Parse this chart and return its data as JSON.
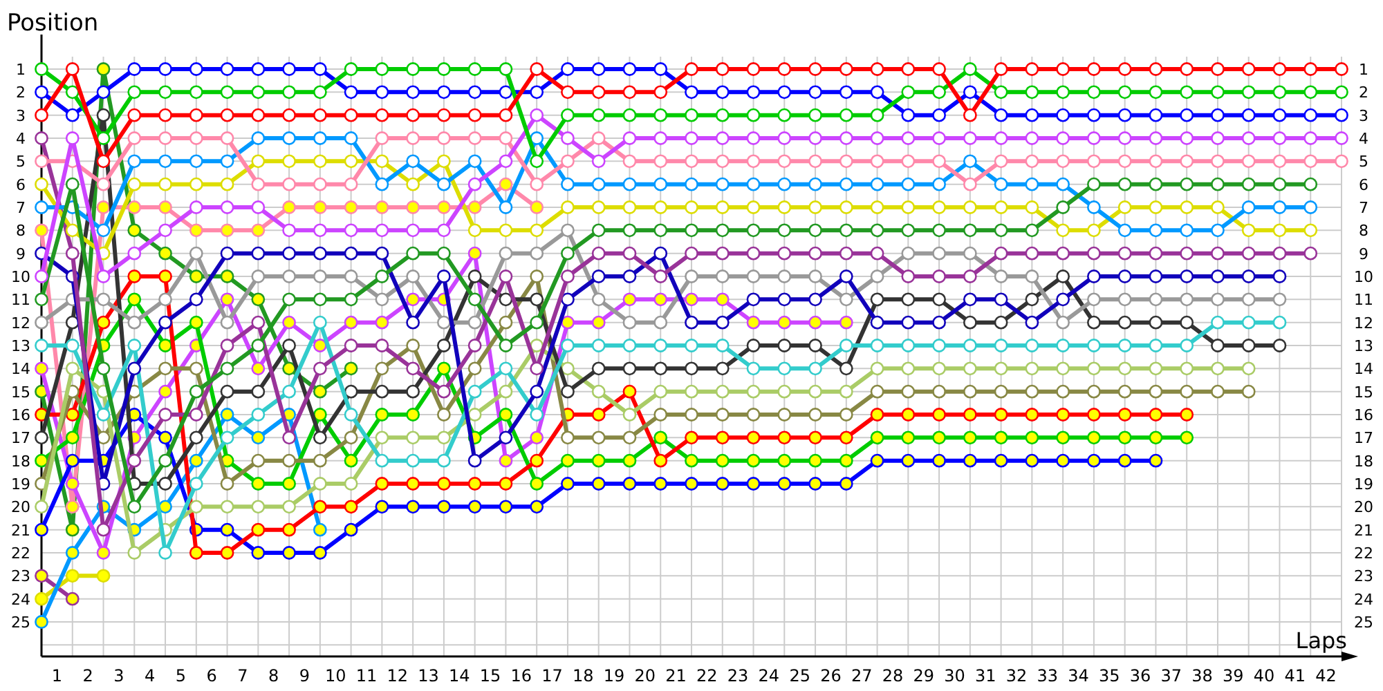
{
  "chart_data": {
    "type": "line",
    "xlabel": "Laps",
    "ylabel": "Position",
    "grid": true,
    "marker": "circle",
    "line_style": "solid",
    "x": [
      0,
      1,
      2,
      3,
      4,
      5,
      6,
      7,
      8,
      9,
      10,
      11,
      12,
      13,
      14,
      15,
      16,
      17,
      18,
      19,
      20,
      21,
      22,
      23,
      24,
      25,
      26,
      27,
      28,
      29,
      30,
      31,
      32,
      33,
      34,
      35,
      36,
      37,
      38,
      39,
      40,
      41,
      42
    ],
    "xlim": [
      0,
      42
    ],
    "xticks": [
      {
        "value": 0,
        "label": null
      },
      {
        "value": 0.5,
        "label": "1"
      },
      {
        "value": 1,
        "label": null
      },
      {
        "value": 1.5,
        "label": "2"
      },
      {
        "value": 2,
        "label": null
      },
      {
        "value": 2.5,
        "label": "3"
      },
      {
        "value": 3,
        "label": null
      },
      {
        "value": 3.5,
        "label": "4"
      },
      {
        "value": 4,
        "label": null
      },
      {
        "value": 4.5,
        "label": "5"
      },
      {
        "value": 5,
        "label": null
      },
      {
        "value": 5.5,
        "label": "6"
      },
      {
        "value": 6,
        "label": null
      },
      {
        "value": 6.5,
        "label": "7"
      },
      {
        "value": 7,
        "label": null
      },
      {
        "value": 7.5,
        "label": "8"
      },
      {
        "value": 8,
        "label": null
      },
      {
        "value": 8.5,
        "label": "9"
      },
      {
        "value": 9,
        "label": null
      },
      {
        "value": 9.5,
        "label": "10"
      },
      {
        "value": 10,
        "label": null
      },
      {
        "value": 10.5,
        "label": "11"
      },
      {
        "value": 11,
        "label": null
      },
      {
        "value": 11.5,
        "label": "12"
      },
      {
        "value": 12,
        "label": null
      },
      {
        "value": 12.5,
        "label": "13"
      },
      {
        "value": 13,
        "label": null
      },
      {
        "value": 13.5,
        "label": "14"
      },
      {
        "value": 14,
        "label": null
      },
      {
        "value": 14.5,
        "label": "15"
      },
      {
        "value": 15,
        "label": null
      },
      {
        "value": 15.5,
        "label": "16"
      },
      {
        "value": 16,
        "label": null
      },
      {
        "value": 16.5,
        "label": "17"
      },
      {
        "value": 17,
        "label": null
      },
      {
        "value": 17.5,
        "label": "18"
      },
      {
        "value": 18,
        "label": null
      },
      {
        "value": 18.5,
        "label": "19"
      },
      {
        "value": 19,
        "label": null
      },
      {
        "value": 19.5,
        "label": "20"
      },
      {
        "value": 20,
        "label": null
      },
      {
        "value": 20.5,
        "label": "21"
      },
      {
        "value": 21,
        "label": null
      },
      {
        "value": 21.5,
        "label": "22"
      },
      {
        "value": 22,
        "label": null
      },
      {
        "value": 22.5,
        "label": "23"
      },
      {
        "value": 23,
        "label": null
      },
      {
        "value": 23.5,
        "label": "24"
      },
      {
        "value": 24,
        "label": null
      },
      {
        "value": 24.5,
        "label": "25"
      },
      {
        "value": 25,
        "label": null
      },
      {
        "value": 25.5,
        "label": "26"
      },
      {
        "value": 26,
        "label": null
      },
      {
        "value": 26.5,
        "label": "27"
      },
      {
        "value": 27,
        "label": null
      },
      {
        "value": 27.5,
        "label": "28"
      },
      {
        "value": 28,
        "label": null
      },
      {
        "value": 28.5,
        "label": "29"
      },
      {
        "value": 29,
        "label": null
      },
      {
        "value": 29.5,
        "label": "30"
      },
      {
        "value": 30,
        "label": null
      },
      {
        "value": 30.5,
        "label": "31"
      },
      {
        "value": 31,
        "label": null
      },
      {
        "value": 31.5,
        "label": "32"
      },
      {
        "value": 32,
        "label": null
      },
      {
        "value": 32.5,
        "label": "33"
      },
      {
        "value": 33,
        "label": null
      },
      {
        "value": 33.5,
        "label": "34"
      },
      {
        "value": 34,
        "label": null
      },
      {
        "value": 34.5,
        "label": "35"
      },
      {
        "value": 35,
        "label": null
      },
      {
        "value": 35.5,
        "label": "36"
      },
      {
        "value": 36,
        "label": null
      },
      {
        "value": 36.5,
        "label": "37"
      },
      {
        "value": 37,
        "label": null
      },
      {
        "value": 37.5,
        "label": "38"
      },
      {
        "value": 38,
        "label": null
      },
      {
        "value": 38.5,
        "label": "39"
      },
      {
        "value": 39,
        "label": null
      },
      {
        "value": 39.5,
        "label": "40"
      },
      {
        "value": 40,
        "label": null
      },
      {
        "value": 40.5,
        "label": "41"
      },
      {
        "value": 41,
        "label": null
      },
      {
        "value": 41.5,
        "label": "42"
      },
      {
        "value": 42,
        "label": null
      }
    ],
    "ylim": [
      26.5,
      -0.5
    ],
    "yticks": [
      1,
      2,
      3,
      4,
      5,
      6,
      7,
      8,
      9,
      10,
      11,
      12,
      13,
      14,
      15,
      16,
      17,
      18,
      19,
      20,
      21,
      22,
      23,
      24,
      25,
      {
        "value": 26,
        "label": null
      }
    ],
    "y2lim": [
      26.5,
      -0.5
    ],
    "y2ticks": [
      1,
      2,
      3,
      4,
      5,
      6,
      7,
      8,
      9,
      10,
      11,
      12,
      13,
      14,
      15,
      16,
      17,
      18,
      19,
      20,
      21,
      22,
      23,
      24,
      25
    ],
    "series": [
      {
        "color": "#ff0000",
        "values": [
          3,
          1,
          5,
          3,
          3,
          3,
          3,
          3,
          3,
          3,
          3,
          3,
          3,
          3,
          3,
          3,
          1,
          2,
          2,
          2,
          2,
          1,
          1,
          1,
          1,
          1,
          1,
          1,
          1,
          1,
          3,
          1,
          1,
          1,
          1,
          1,
          1,
          1,
          1,
          1,
          1,
          1,
          1
        ]
      },
      {
        "color": "#00cc00",
        "values": [
          1,
          2,
          4,
          2,
          2,
          2,
          2,
          2,
          2,
          2,
          1,
          1,
          1,
          1,
          1,
          1,
          5,
          3,
          3,
          3,
          3,
          3,
          3,
          3,
          3,
          3,
          3,
          3,
          2,
          2,
          1,
          2,
          2,
          2,
          2,
          2,
          2,
          2,
          2,
          2,
          2,
          2,
          2
        ]
      },
      {
        "color": "#0000ff",
        "values": [
          2,
          3,
          2,
          1,
          1,
          1,
          1,
          1,
          1,
          1,
          2,
          2,
          2,
          2,
          2,
          2,
          2,
          1,
          1,
          1,
          1,
          2,
          2,
          2,
          2,
          2,
          2,
          2,
          3,
          3,
          2,
          3,
          3,
          3,
          3,
          3,
          3,
          3,
          3,
          3,
          3,
          3,
          3
        ]
      },
      {
        "color": "#cc44ff",
        "values": [
          10,
          4,
          10,
          9,
          8,
          7,
          7,
          7,
          8,
          8,
          8,
          8,
          8,
          8,
          6,
          5,
          3,
          4,
          5,
          4,
          4,
          4,
          4,
          4,
          4,
          4,
          4,
          4,
          4,
          4,
          4,
          4,
          4,
          4,
          4,
          4,
          4,
          4,
          4,
          4,
          4,
          4,
          4
        ]
      },
      {
        "color": "#ff88aa",
        "values": [
          5,
          5,
          6,
          4,
          4,
          4,
          4,
          6,
          6,
          6,
          6,
          4,
          4,
          4,
          4,
          4,
          6,
          5,
          4,
          5,
          5,
          5,
          5,
          5,
          5,
          5,
          5,
          5,
          5,
          5,
          6,
          5,
          5,
          5,
          5,
          5,
          5,
          5,
          5,
          5,
          5,
          5,
          5
        ]
      },
      {
        "color": "#229922",
        "values": [
          11,
          6,
          14,
          20,
          18,
          15,
          14,
          13,
          11,
          11,
          11,
          10,
          9,
          9,
          11,
          13,
          12,
          9,
          8,
          8,
          8,
          8,
          8,
          8,
          8,
          8,
          8,
          8,
          8,
          8,
          8,
          8,
          8,
          7,
          6,
          6,
          6,
          6,
          6,
          6,
          6,
          6,
          null
        ]
      },
      {
        "color": "#0099ff",
        "values": [
          7,
          7,
          8,
          5,
          5,
          5,
          5,
          4,
          4,
          4,
          4,
          6,
          5,
          6,
          5,
          7,
          4,
          6,
          6,
          6,
          6,
          6,
          6,
          6,
          6,
          6,
          6,
          6,
          6,
          6,
          5,
          6,
          6,
          6,
          7,
          8,
          8,
          8,
          8,
          7,
          7,
          7,
          null
        ]
      },
      {
        "color": "#dddd00",
        "values": [
          6,
          8,
          9,
          6,
          6,
          6,
          6,
          5,
          5,
          5,
          5,
          5,
          6,
          5,
          8,
          8,
          8,
          7,
          7,
          7,
          7,
          7,
          7,
          7,
          7,
          7,
          7,
          7,
          7,
          7,
          7,
          7,
          7,
          8,
          8,
          7,
          7,
          7,
          7,
          8,
          8,
          8,
          null
        ]
      },
      {
        "color": "#993399",
        "values": [
          4,
          9,
          21,
          18,
          16,
          16,
          13,
          12,
          17,
          14,
          13,
          13,
          14,
          15,
          13,
          10,
          14,
          10,
          9,
          9,
          10,
          9,
          9,
          9,
          9,
          9,
          9,
          9,
          10,
          10,
          10,
          9,
          9,
          9,
          9,
          9,
          9,
          9,
          9,
          9,
          9,
          9,
          null
        ]
      },
      {
        "color": "#1100bb",
        "values": [
          9,
          10,
          19,
          14,
          12,
          11,
          9,
          9,
          9,
          9,
          9,
          9,
          12,
          10,
          18,
          17,
          15,
          11,
          10,
          10,
          9,
          12,
          12,
          11,
          11,
          11,
          10,
          12,
          12,
          12,
          11,
          11,
          12,
          11,
          10,
          10,
          10,
          10,
          10,
          10,
          10,
          null,
          null
        ]
      },
      {
        "color": "#999999",
        "values": [
          12,
          11,
          11,
          12,
          11,
          9,
          12,
          10,
          10,
          10,
          10,
          11,
          10,
          12,
          12,
          9,
          9,
          8,
          11,
          12,
          12,
          10,
          10,
          10,
          10,
          10,
          11,
          10,
          9,
          9,
          9,
          10,
          10,
          12,
          11,
          11,
          11,
          11,
          11,
          11,
          11,
          null,
          null
        ]
      },
      {
        "color": "#33cccc",
        "values": [
          13,
          13,
          16,
          13,
          22,
          19,
          17,
          16,
          15,
          12,
          16,
          18,
          18,
          18,
          15,
          14,
          16,
          13,
          13,
          13,
          13,
          13,
          13,
          14,
          14,
          14,
          13,
          13,
          13,
          13,
          13,
          13,
          13,
          13,
          13,
          13,
          13,
          13,
          12,
          12,
          12,
          null,
          null
        ]
      },
      {
        "color": "#333333",
        "values": [
          17,
          12,
          3,
          19,
          19,
          17,
          15,
          15,
          13,
          17,
          15,
          15,
          15,
          13,
          10,
          11,
          11,
          15,
          14,
          14,
          14,
          14,
          14,
          13,
          13,
          13,
          14,
          11,
          11,
          11,
          12,
          12,
          11,
          10,
          12,
          12,
          12,
          12,
          13,
          13,
          13,
          null,
          null
        ]
      },
      {
        "color": "#aacc66",
        "values": [
          20,
          14,
          15,
          22,
          21,
          20,
          20,
          20,
          20,
          19,
          19,
          17,
          17,
          17,
          16,
          15,
          13,
          14,
          15,
          16,
          15,
          15,
          15,
          15,
          15,
          15,
          15,
          14,
          14,
          14,
          14,
          14,
          14,
          14,
          14,
          14,
          14,
          14,
          14,
          14,
          null,
          null,
          null
        ]
      },
      {
        "color": "#888844",
        "values": [
          19,
          15,
          17,
          15,
          14,
          14,
          19,
          18,
          18,
          18,
          17,
          14,
          13,
          16,
          14,
          12,
          10,
          17,
          17,
          17,
          16,
          16,
          16,
          16,
          16,
          16,
          16,
          15,
          15,
          15,
          15,
          15,
          15,
          15,
          15,
          15,
          15,
          15,
          15,
          15,
          null,
          null,
          null
        ]
      },
      {
        "color": "#ff0000",
        "colors": [
          "#ffff00",
          "#ffff00",
          "#ffff00",
          "#ffff00",
          "#ffff00",
          "#ffff00",
          "#ffff00",
          "#ffff00",
          "#ffff00",
          "#ffff00",
          "#ffff00",
          "#ffff00",
          "#ffff00",
          "#ffff00",
          "#ffff00",
          "#ffff00",
          "#ffff00",
          "#ffff00",
          "#ffff00",
          "#ffff00",
          "#ffff00",
          "#ffff00",
          "#ffff00",
          "#ffff00",
          "#ffff00",
          "#ffff00",
          "#ffff00",
          "#ffff00",
          "#ffff00",
          "#ffff00",
          "#ffff00",
          "#ffff00",
          "#ffff00",
          "#ffff00",
          "#ffff00",
          "#ffff00",
          "#ffff00",
          "#ffff00",
          null,
          null,
          null,
          null,
          null
        ],
        "values": [
          16,
          16,
          12,
          10,
          10,
          22,
          22,
          21,
          21,
          20,
          20,
          19,
          19,
          19,
          19,
          19,
          18,
          16,
          16,
          15,
          18,
          17,
          17,
          17,
          17,
          17,
          17,
          16,
          16,
          16,
          16,
          16,
          16,
          16,
          16,
          16,
          16,
          16,
          null,
          null,
          null,
          null,
          null
        ]
      },
      {
        "color": "#00cc00",
        "colors": [
          "#ffff00",
          "#ffff00",
          "#ffff00",
          "#ffff00",
          "#ffff00",
          "#ffff00",
          "#ffff00",
          "#ffff00",
          "#ffff00",
          "#ffff00",
          "#ffff00",
          "#ffff00",
          "#ffff00",
          "#ffff00",
          "#ffff00",
          "#ffff00",
          "#ffff00",
          "#ffff00",
          "#ffff00",
          "#ffff00",
          "#ffff00",
          "#ffff00",
          "#ffff00",
          "#ffff00",
          "#ffff00",
          "#ffff00",
          "#ffff00",
          "#ffff00",
          "#ffff00",
          "#ffff00",
          "#ffff00",
          "#ffff00",
          "#ffff00",
          "#ffff00",
          "#ffff00",
          "#ffff00",
          "#ffff00",
          "#ffff00",
          null,
          null,
          null,
          null,
          null
        ],
        "values": [
          18,
          17,
          13,
          11,
          13,
          12,
          18,
          19,
          19,
          16,
          18,
          16,
          16,
          14,
          17,
          16,
          19,
          18,
          18,
          18,
          17,
          18,
          18,
          18,
          18,
          18,
          18,
          17,
          17,
          17,
          17,
          17,
          17,
          17,
          17,
          17,
          17,
          17,
          null,
          null,
          null,
          null,
          null
        ]
      },
      {
        "color": "#0000ff",
        "colors": [
          "#ffff00",
          "#ffff00",
          "#ffff00",
          "#ffff00",
          "#ffff00",
          "#ffff00",
          "#ffff00",
          "#ffff00",
          "#ffff00",
          "#ffff00",
          "#ffff00",
          "#ffff00",
          "#ffff00",
          "#ffff00",
          "#ffff00",
          "#ffff00",
          "#ffff00",
          "#ffff00",
          "#ffff00",
          "#ffff00",
          "#ffff00",
          "#ffff00",
          "#ffff00",
          "#ffff00",
          "#ffff00",
          "#ffff00",
          "#ffff00",
          "#ffff00",
          "#ffff00",
          "#ffff00",
          "#ffff00",
          "#ffff00",
          "#ffff00",
          "#ffff00",
          "#ffff00",
          "#ffff00",
          "#ffff00",
          null,
          null,
          null,
          null,
          null,
          null
        ],
        "values": [
          21,
          18,
          18,
          16,
          17,
          21,
          21,
          22,
          22,
          22,
          21,
          20,
          20,
          20,
          20,
          20,
          20,
          19,
          19,
          19,
          19,
          19,
          19,
          19,
          19,
          19,
          19,
          18,
          18,
          18,
          18,
          18,
          18,
          18,
          18,
          18,
          18,
          null,
          null,
          null,
          null,
          null,
          null
        ]
      },
      {
        "color": "#cc44ff",
        "colors": [
          "#ffff00",
          "#ffff00",
          "#ffff00",
          "#ffff00",
          "#ffff00",
          "#ffff00",
          "#ffff00",
          "#ffff00",
          "#ffff00",
          "#ffff00",
          "#ffff00",
          "#ffff00",
          "#ffff00",
          "#ffff00",
          "#ffff00",
          "#ffff00",
          "#ffff00",
          "#ffff00",
          "#ffff00",
          "#ffff00",
          "#ffff00",
          "#ffff00",
          "#ffff00",
          "#ffff00",
          "#ffff00",
          "#ffff00",
          "#ffff00",
          null,
          null,
          null,
          null,
          null,
          null,
          null,
          null,
          null,
          null,
          null,
          null,
          null,
          null,
          null,
          null
        ],
        "values": [
          14,
          19,
          22,
          17,
          15,
          13,
          11,
          14,
          12,
          13,
          12,
          12,
          11,
          11,
          9,
          18,
          17,
          12,
          12,
          11,
          11,
          11,
          11,
          12,
          12,
          12,
          12,
          null,
          null,
          null,
          null,
          null,
          null,
          null,
          null,
          null,
          null,
          null,
          null,
          null,
          null,
          null,
          null
        ]
      },
      {
        "color": "#ff88aa",
        "colors": [
          "#ffff00",
          "#ffff00",
          "#ffff00",
          "#ffff00",
          "#ffff00",
          "#ffff00",
          "#ffff00",
          "#ffff00",
          "#ffff00",
          "#ffff00",
          "#ffff00",
          "#ffff00",
          "#ffff00",
          "#ffff00",
          "#ffff00",
          "#ffff00",
          "#ffff00",
          null,
          null,
          null,
          null,
          null,
          null,
          null,
          null,
          null,
          null,
          null,
          null,
          null,
          null,
          null,
          null,
          null,
          null,
          null,
          null,
          null,
          null,
          null,
          null,
          null,
          null
        ],
        "values": [
          8,
          20,
          7,
          7,
          7,
          8,
          8,
          8,
          7,
          7,
          7,
          7,
          7,
          7,
          7,
          6,
          7,
          null,
          null,
          null,
          null,
          null,
          null,
          null,
          null,
          null,
          null,
          null,
          null,
          null,
          null,
          null,
          null,
          null,
          null,
          null,
          null,
          null,
          null,
          null,
          null,
          null,
          null
        ]
      },
      {
        "color": "#0099ff",
        "colors": [
          "#ffff00",
          "#ffff00",
          "#ffff00",
          "#ffff00",
          "#ffff00",
          "#ffff00",
          "#ffff00",
          "#ffff00",
          "#ffff00",
          "#ffff00",
          null,
          null,
          null,
          null,
          null,
          null,
          null,
          null,
          null,
          null,
          null,
          null,
          null,
          null,
          null,
          null,
          null,
          null,
          null,
          null,
          null,
          null,
          null,
          null,
          null,
          null,
          null,
          null,
          null,
          null,
          null,
          null,
          null
        ],
        "values": [
          25,
          22,
          20,
          21,
          20,
          18,
          16,
          17,
          16,
          21,
          null,
          null,
          null,
          null,
          null,
          null,
          null,
          null,
          null,
          null,
          null,
          null,
          null,
          null,
          null,
          null,
          null,
          null,
          null,
          null,
          null,
          null,
          null,
          null,
          null,
          null,
          null,
          null,
          null,
          null,
          null,
          null,
          null
        ]
      },
      {
        "color": "#229922",
        "colors": [
          "#ffff00",
          "#ffff00",
          "#ffff00",
          "#ffff00",
          "#ffff00",
          "#ffff00",
          "#ffff00",
          "#ffff00",
          "#ffff00",
          "#ffff00",
          "#ffff00",
          null,
          null,
          null,
          null,
          null,
          null,
          null,
          null,
          null,
          null,
          null,
          null,
          null,
          null,
          null,
          null,
          null,
          null,
          null,
          null,
          null,
          null,
          null,
          null,
          null,
          null,
          null,
          null,
          null,
          null,
          null,
          null
        ],
        "values": [
          15,
          21,
          1,
          8,
          9,
          10,
          10,
          11,
          14,
          15,
          14,
          null,
          null,
          null,
          null,
          null,
          null,
          null,
          null,
          null,
          null,
          null,
          null,
          null,
          null,
          null,
          null,
          null,
          null,
          null,
          null,
          null,
          null,
          null,
          null,
          null,
          null,
          null,
          null,
          null,
          null,
          null,
          null
        ]
      },
      {
        "color": "#dddd00",
        "colors": [
          "#ffff00",
          "#ffff00",
          "#ffff00",
          null,
          null,
          null,
          null,
          null,
          null,
          null,
          null,
          null,
          null,
          null,
          null,
          null,
          null,
          null,
          null,
          null,
          null,
          null,
          null,
          null,
          null,
          null,
          null,
          null,
          null,
          null,
          null,
          null,
          null,
          null,
          null,
          null,
          null,
          null,
          null,
          null,
          null,
          null,
          null
        ],
        "values": [
          24,
          23,
          23,
          null,
          null,
          null,
          null,
          null,
          null,
          null,
          null,
          null,
          null,
          null,
          null,
          null,
          null,
          null,
          null,
          null,
          null,
          null,
          null,
          null,
          null,
          null,
          null,
          null,
          null,
          null,
          null,
          null,
          null,
          null,
          null,
          null,
          null,
          null,
          null,
          null,
          null,
          null,
          null
        ]
      },
      {
        "color": "#993399",
        "colors": [
          "#ffff00",
          "#ffff00",
          null,
          null,
          null,
          null,
          null,
          null,
          null,
          null,
          null,
          null,
          null,
          null,
          null,
          null,
          null,
          null,
          null,
          null,
          null,
          null,
          null,
          null,
          null,
          null,
          null,
          null,
          null,
          null,
          null,
          null,
          null,
          null,
          null,
          null,
          null,
          null,
          null,
          null,
          null,
          null,
          null
        ],
        "values": [
          23,
          24,
          null,
          null,
          null,
          null,
          null,
          null,
          null,
          null,
          null,
          null,
          null,
          null,
          null,
          null,
          null,
          null,
          null,
          null,
          null,
          null,
          null,
          null,
          null,
          null,
          null,
          null,
          null,
          null,
          null,
          null,
          null,
          null,
          null,
          null,
          null,
          null,
          null,
          null,
          null,
          null,
          null
        ]
      }
    ]
  }
}
